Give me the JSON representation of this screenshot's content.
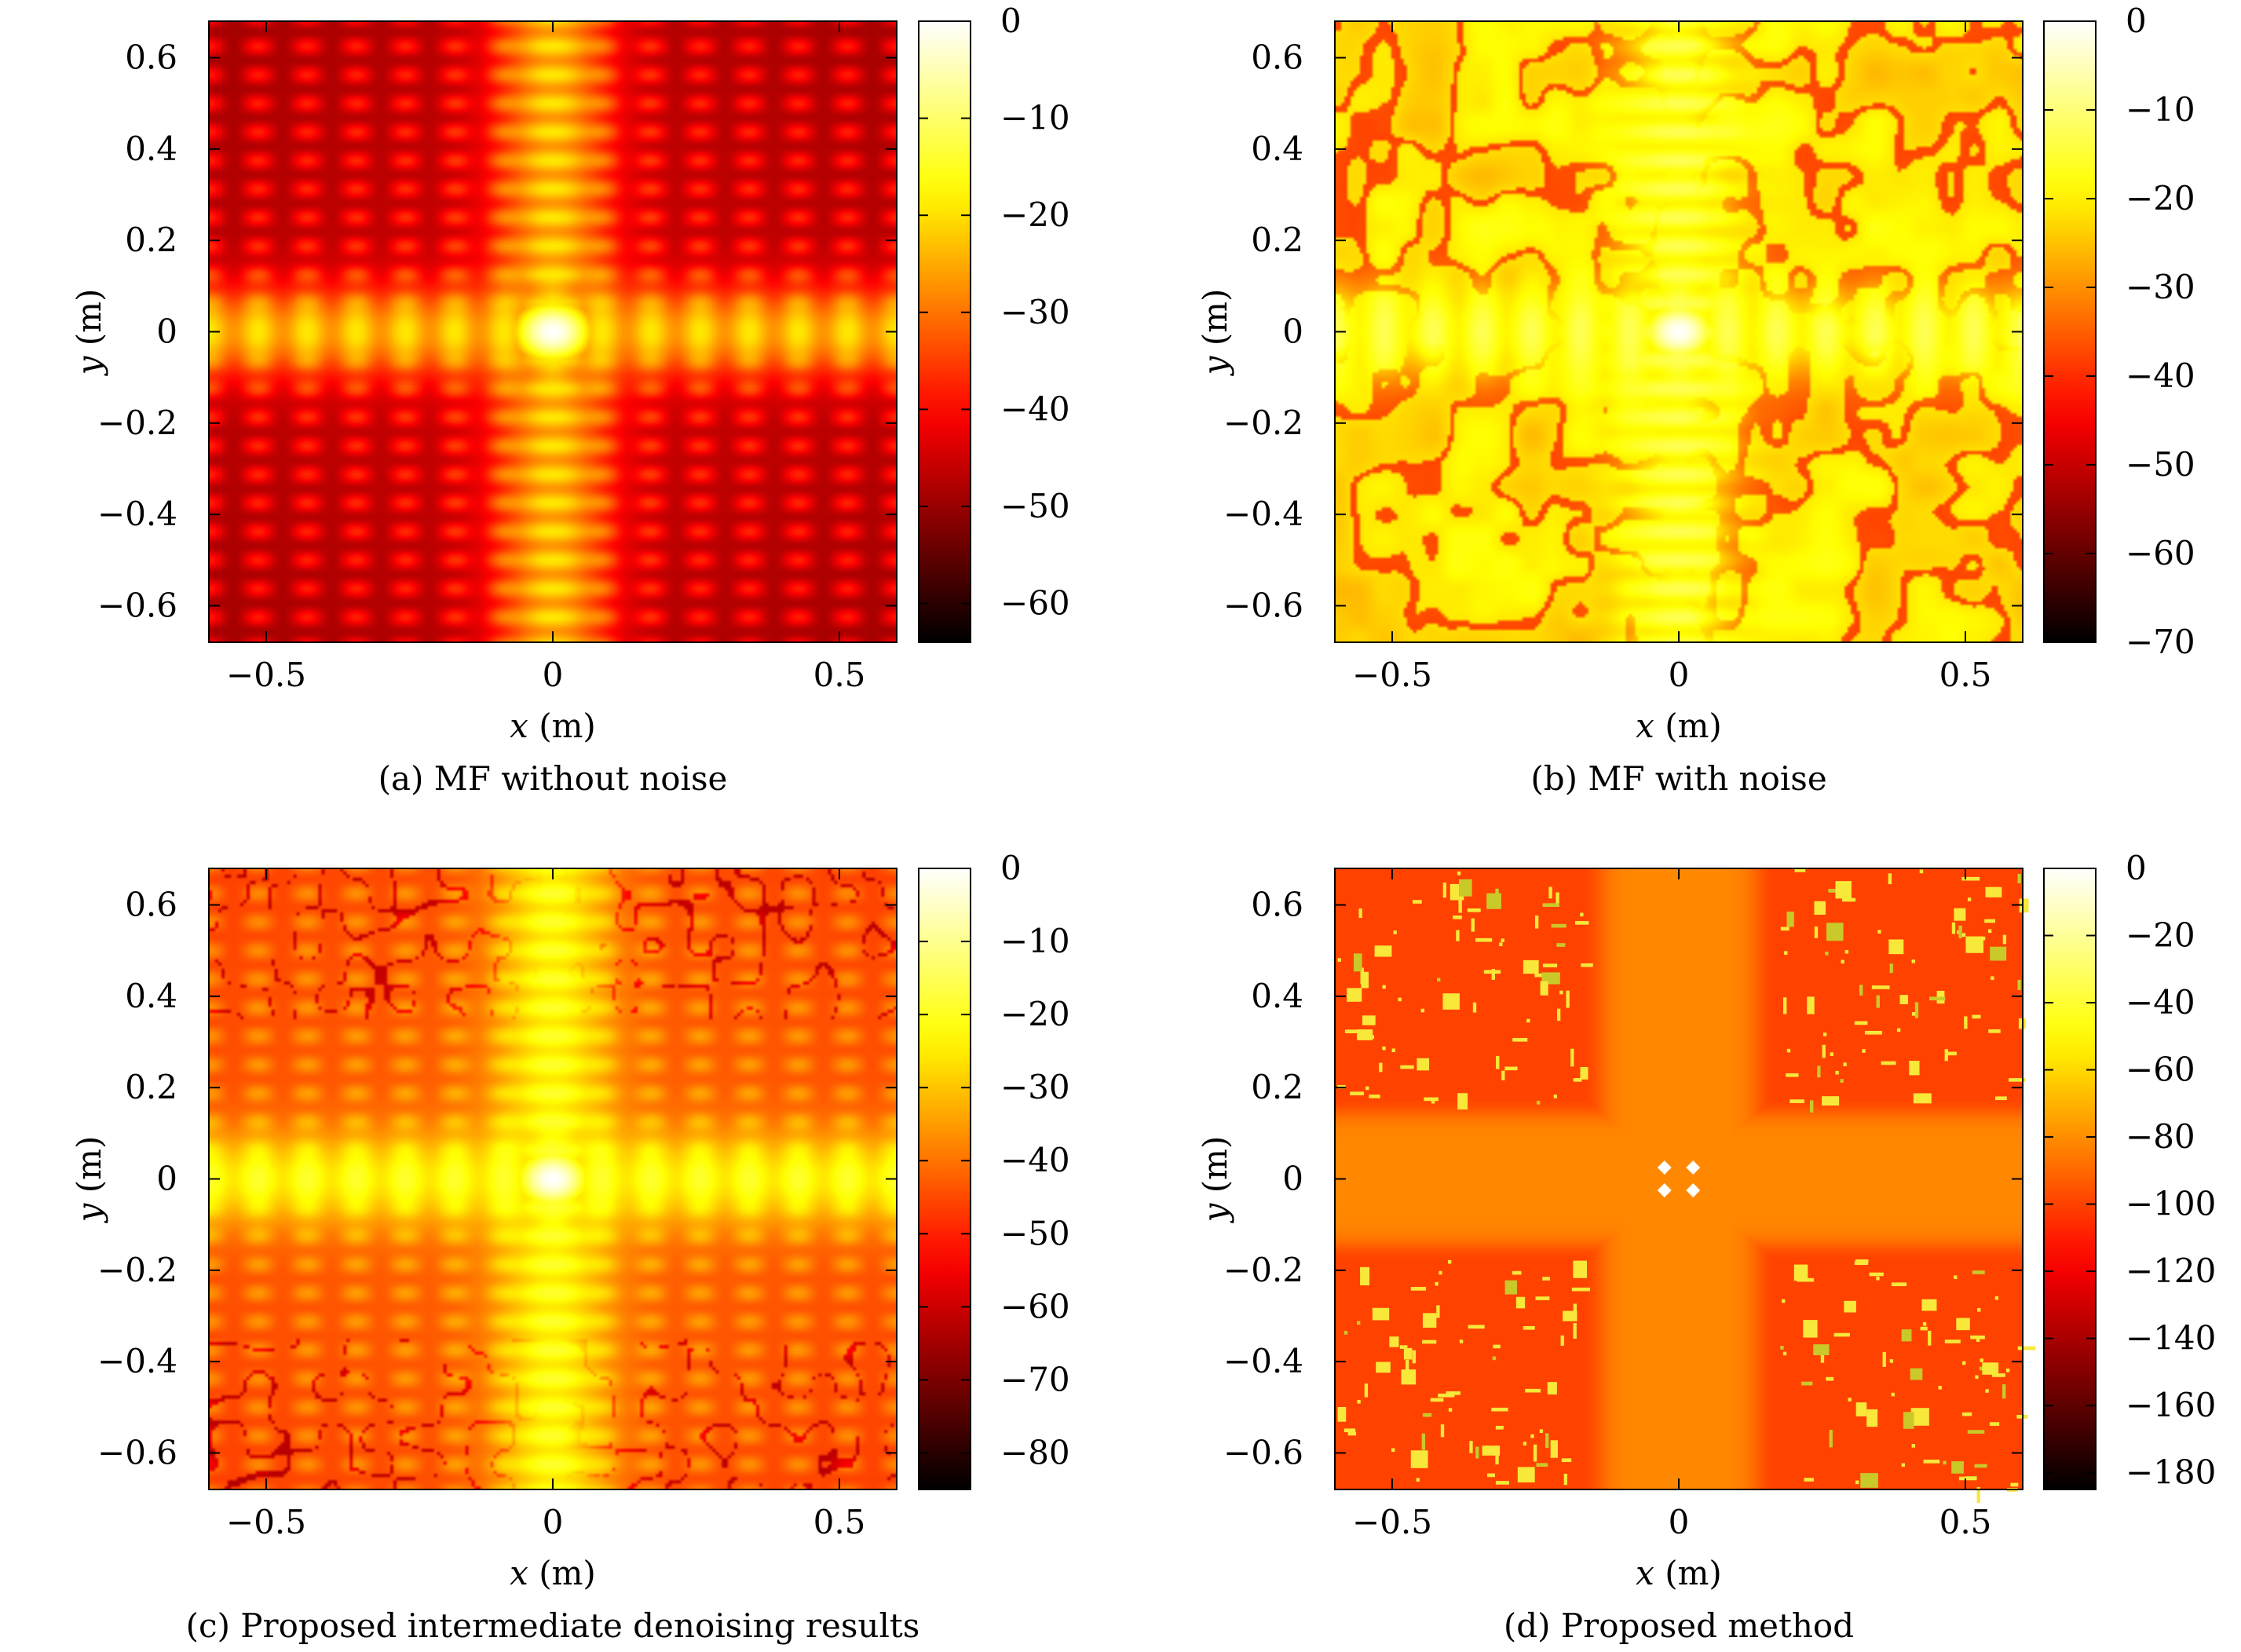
{
  "chart_data": [
    {
      "type": "heatmap",
      "caption": "(a) MF without noise",
      "xlabel": "x (m)",
      "ylabel": "y (m)",
      "xlim": [
        -0.6,
        0.6
      ],
      "ylim": [
        -0.68,
        0.68
      ],
      "xticks": [
        {
          "v": -0.5,
          "label": "−0.5"
        },
        {
          "v": 0,
          "label": "0"
        },
        {
          "v": 0.5,
          "label": "0.5"
        }
      ],
      "yticks": [
        {
          "v": 0.6,
          "label": "0.6"
        },
        {
          "v": 0.4,
          "label": "0.4"
        },
        {
          "v": 0.2,
          "label": "0.2"
        },
        {
          "v": 0,
          "label": "0"
        },
        {
          "v": -0.2,
          "label": "−0.2"
        },
        {
          "v": -0.4,
          "label": "−0.4"
        },
        {
          "v": -0.6,
          "label": "−0.6"
        }
      ],
      "colorbar": {
        "range": [
          -64,
          0
        ],
        "ticks": [
          {
            "v": 0,
            "label": "0"
          },
          {
            "v": -10,
            "label": "−10"
          },
          {
            "v": -20,
            "label": "−20"
          },
          {
            "v": -30,
            "label": "−30"
          },
          {
            "v": -40,
            "label": "−40"
          },
          {
            "v": -50,
            "label": "−50"
          },
          {
            "v": -60,
            "label": "−60"
          }
        ]
      },
      "colormap": "hot",
      "pattern": "sidelobe-grid"
    },
    {
      "type": "heatmap",
      "caption": "(b) MF with noise",
      "xlabel": "x (m)",
      "ylabel": "y (m)",
      "xlim": [
        -0.6,
        0.6
      ],
      "ylim": [
        -0.68,
        0.68
      ],
      "xticks": [
        {
          "v": -0.5,
          "label": "−0.5"
        },
        {
          "v": 0,
          "label": "0"
        },
        {
          "v": 0.5,
          "label": "0.5"
        }
      ],
      "yticks": [
        {
          "v": 0.6,
          "label": "0.6"
        },
        {
          "v": 0.4,
          "label": "0.4"
        },
        {
          "v": 0.2,
          "label": "0.2"
        },
        {
          "v": 0,
          "label": "0"
        },
        {
          "v": -0.2,
          "label": "−0.2"
        },
        {
          "v": -0.4,
          "label": "−0.4"
        },
        {
          "v": -0.6,
          "label": "−0.6"
        }
      ],
      "colorbar": {
        "range": [
          -70,
          0
        ],
        "ticks": [
          {
            "v": 0,
            "label": "0"
          },
          {
            "v": -10,
            "label": "−10"
          },
          {
            "v": -20,
            "label": "−20"
          },
          {
            "v": -30,
            "label": "−30"
          },
          {
            "v": -40,
            "label": "−40"
          },
          {
            "v": -50,
            "label": "−50"
          },
          {
            "v": -60,
            "label": "−60"
          },
          {
            "v": -70,
            "label": "−70"
          }
        ]
      },
      "colormap": "hot",
      "pattern": "noisy-cross"
    },
    {
      "type": "heatmap",
      "caption": "(c) Proposed intermediate denoising results",
      "xlabel": "x (m)",
      "ylabel": "y (m)",
      "xlim": [
        -0.6,
        0.6
      ],
      "ylim": [
        -0.68,
        0.68
      ],
      "xticks": [
        {
          "v": -0.5,
          "label": "−0.5"
        },
        {
          "v": 0,
          "label": "0"
        },
        {
          "v": 0.5,
          "label": "0.5"
        }
      ],
      "yticks": [
        {
          "v": 0.6,
          "label": "0.6"
        },
        {
          "v": 0.4,
          "label": "0.4"
        },
        {
          "v": 0.2,
          "label": "0.2"
        },
        {
          "v": 0,
          "label": "0"
        },
        {
          "v": -0.2,
          "label": "−0.2"
        },
        {
          "v": -0.4,
          "label": "−0.4"
        },
        {
          "v": -0.6,
          "label": "−0.6"
        }
      ],
      "colorbar": {
        "range": [
          -85,
          0
        ],
        "ticks": [
          {
            "v": 0,
            "label": "0"
          },
          {
            "v": -10,
            "label": "−10"
          },
          {
            "v": -20,
            "label": "−20"
          },
          {
            "v": -30,
            "label": "−30"
          },
          {
            "v": -40,
            "label": "−40"
          },
          {
            "v": -50,
            "label": "−50"
          },
          {
            "v": -60,
            "label": "−60"
          },
          {
            "v": -70,
            "label": "−70"
          },
          {
            "v": -80,
            "label": "−80"
          }
        ]
      },
      "colormap": "hot",
      "pattern": "denoised-grid"
    },
    {
      "type": "heatmap",
      "caption": "(d) Proposed method",
      "xlabel": "x (m)",
      "ylabel": "y (m)",
      "xlim": [
        -0.6,
        0.6
      ],
      "ylim": [
        -0.68,
        0.68
      ],
      "xticks": [
        {
          "v": -0.5,
          "label": "−0.5"
        },
        {
          "v": 0,
          "label": "0"
        },
        {
          "v": 0.5,
          "label": "0.5"
        }
      ],
      "yticks": [
        {
          "v": 0.6,
          "label": "0.6"
        },
        {
          "v": 0.4,
          "label": "0.4"
        },
        {
          "v": 0.2,
          "label": "0.2"
        },
        {
          "v": 0,
          "label": "0"
        },
        {
          "v": -0.2,
          "label": "−0.2"
        },
        {
          "v": -0.4,
          "label": "−0.4"
        },
        {
          "v": -0.6,
          "label": "−0.6"
        }
      ],
      "colorbar": {
        "range": [
          -185,
          0
        ],
        "ticks": [
          {
            "v": 0,
            "label": "0"
          },
          {
            "v": -20,
            "label": "−20"
          },
          {
            "v": -40,
            "label": "−40"
          },
          {
            "v": -60,
            "label": "−60"
          },
          {
            "v": -80,
            "label": "−80"
          },
          {
            "v": -100,
            "label": "−100"
          },
          {
            "v": -120,
            "label": "−120"
          },
          {
            "v": -140,
            "label": "−140"
          },
          {
            "v": -160,
            "label": "−160"
          },
          {
            "v": -180,
            "label": "−180"
          }
        ]
      },
      "colormap": "hot",
      "pattern": "sparse-targets",
      "targets": [
        [
          -0.025,
          0.025
        ],
        [
          0.025,
          0.025
        ],
        [
          -0.025,
          -0.025
        ],
        [
          0.025,
          -0.025
        ]
      ]
    }
  ]
}
